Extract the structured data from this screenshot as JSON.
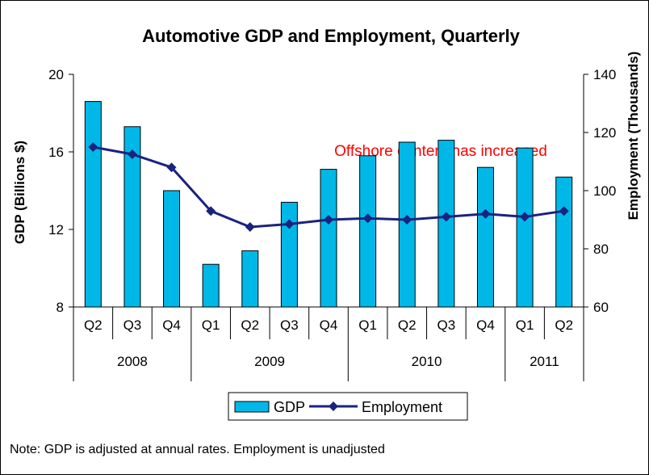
{
  "chart_data": {
    "type": "bar",
    "title": "Automotive GDP and Employment, Quarterly",
    "ylabel": "GDP (Billions $)",
    "y2label": "Employment (Thousands)",
    "ylim": [
      8,
      20
    ],
    "y2lim": [
      60,
      140
    ],
    "yticks": [
      8,
      12,
      16,
      20
    ],
    "y2ticks": [
      60,
      80,
      100,
      120,
      140
    ],
    "categories": [
      "Q2",
      "Q3",
      "Q4",
      "Q1",
      "Q2",
      "Q3",
      "Q4",
      "Q1",
      "Q2",
      "Q3",
      "Q4",
      "Q1",
      "Q2"
    ],
    "year_groups": [
      {
        "label": "2008",
        "count": 3
      },
      {
        "label": "2009",
        "count": 4
      },
      {
        "label": "2010",
        "count": 4
      },
      {
        "label": "2011",
        "count": 2
      }
    ],
    "series": [
      {
        "name": "GDP",
        "type": "bar",
        "axis": "left",
        "color": "#00b8e8",
        "values": [
          18.6,
          17.3,
          14.0,
          10.2,
          10.9,
          13.4,
          15.1,
          15.8,
          16.5,
          16.6,
          15.2,
          16.2,
          14.7
        ]
      },
      {
        "name": "Employment",
        "type": "line",
        "axis": "right",
        "color": "#1a237e",
        "values": [
          115,
          112.5,
          108,
          93,
          87.5,
          88.5,
          90,
          90.5,
          90,
          91,
          92,
          91,
          93
        ]
      }
    ],
    "annotation": {
      "text": "Offshore content has increased",
      "color": "#ff0000"
    },
    "legend_position": "bottom"
  },
  "note": "Note: GDP is adjusted at annual rates. Employment is unadjusted"
}
